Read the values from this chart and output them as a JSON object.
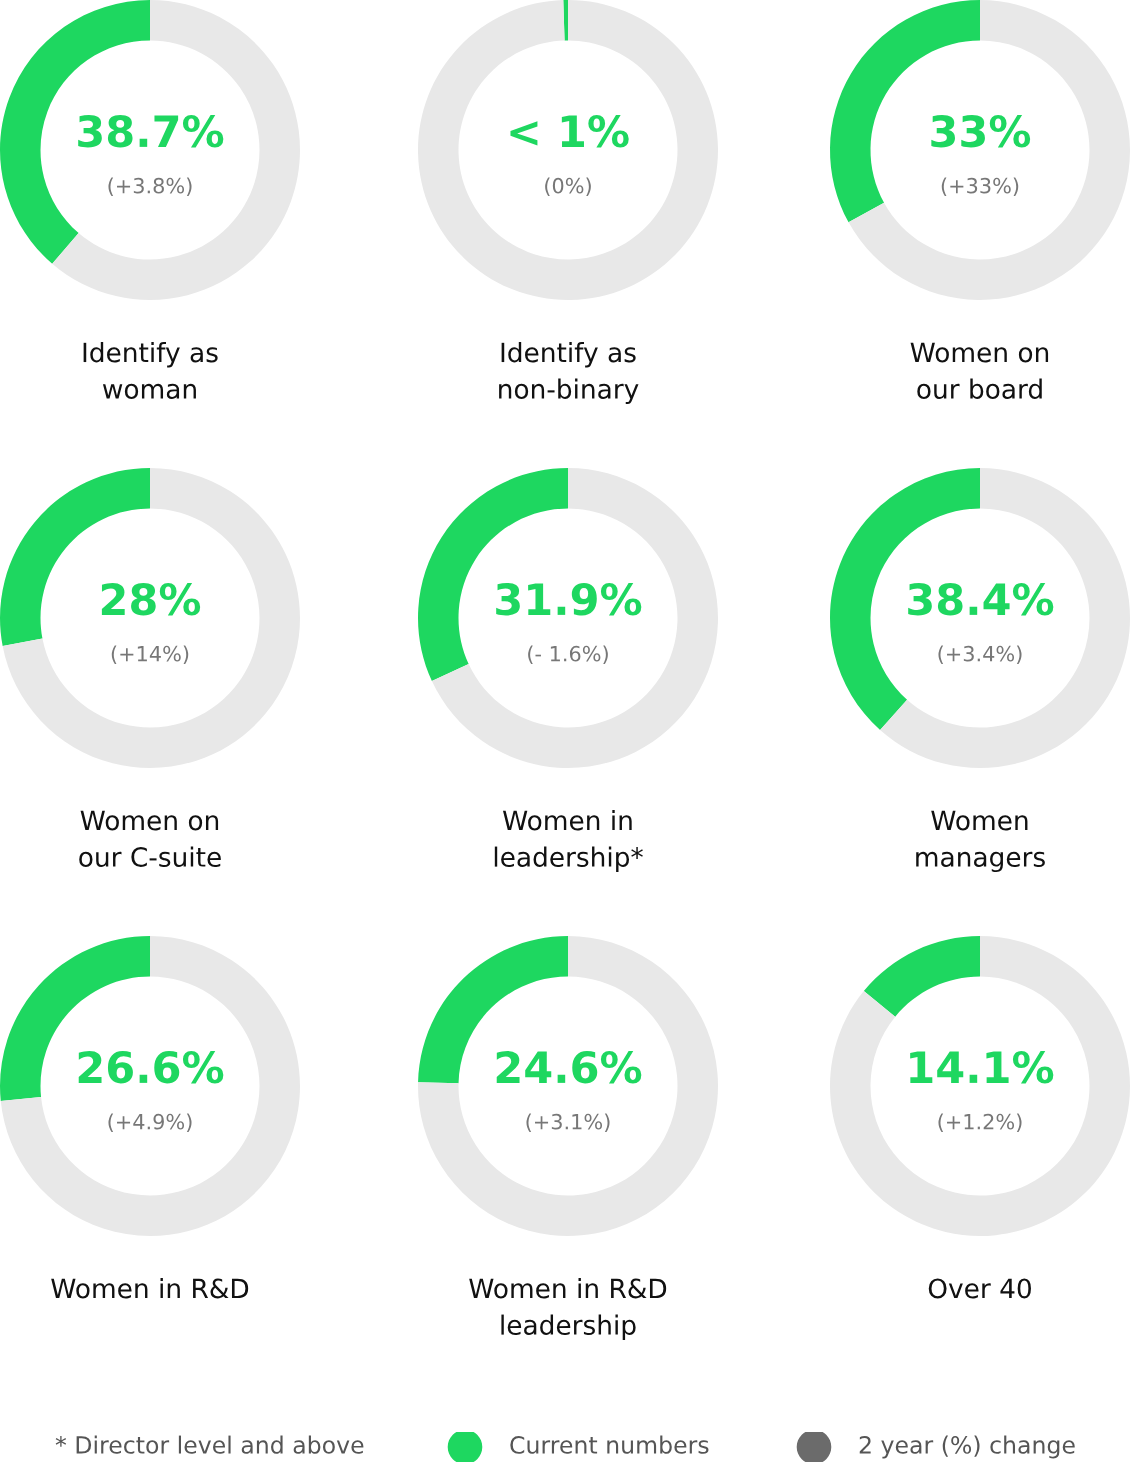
{
  "chart_data": [
    {
      "type": "donut",
      "categories": [
        null,
        null
      ],
      "values": [
        38.7,
        61.3
      ],
      "colors": [
        "#1ed760",
        "#e8e8e8"
      ],
      "value_labels": [
        "38.7%",
        null
      ],
      "annotations": [
        "(+3.8%)"
      ],
      "xlabel": "Identify as\nwoman"
    },
    {
      "type": "donut",
      "categories": [
        null,
        null
      ],
      "values": [
        0.5,
        99.5
      ],
      "colors": [
        "#1ed760",
        "#e8e8e8"
      ],
      "value_labels": [
        "< 1%",
        null
      ],
      "annotations": [
        "(0%)"
      ],
      "xlabel": "Identify as\nnon-binary"
    },
    {
      "type": "donut",
      "categories": [
        null,
        null
      ],
      "values": [
        33,
        67
      ],
      "colors": [
        "#1ed760",
        "#e8e8e8"
      ],
      "value_labels": [
        "33%",
        null
      ],
      "annotations": [
        "(+33%)"
      ],
      "xlabel": "Women on\nour board"
    },
    {
      "type": "donut",
      "categories": [
        null,
        null
      ],
      "values": [
        28,
        72
      ],
      "colors": [
        "#1ed760",
        "#e8e8e8"
      ],
      "value_labels": [
        "28%",
        null
      ],
      "annotations": [
        "(+14%)"
      ],
      "xlabel": "Women on\nour C-suite"
    },
    {
      "type": "donut",
      "categories": [
        null,
        null
      ],
      "values": [
        31.9,
        68.1
      ],
      "colors": [
        "#1ed760",
        "#e8e8e8"
      ],
      "value_labels": [
        "31.9%",
        null
      ],
      "annotations": [
        "(- 1.6%)"
      ],
      "xlabel": "Women in\nleadership*"
    },
    {
      "type": "donut",
      "categories": [
        null,
        null
      ],
      "values": [
        38.4,
        61.6
      ],
      "colors": [
        "#1ed760",
        "#e8e8e8"
      ],
      "value_labels": [
        "38.4%",
        null
      ],
      "annotations": [
        "(+3.4%)"
      ],
      "xlabel": "Women\nmanagers"
    },
    {
      "type": "donut",
      "categories": [
        null,
        null
      ],
      "values": [
        26.6,
        73.4
      ],
      "colors": [
        "#1ed760",
        "#e8e8e8"
      ],
      "value_labels": [
        "26.6%",
        null
      ],
      "annotations": [
        "(+4.9%)"
      ],
      "xlabel": "Women in R&D"
    },
    {
      "type": "donut",
      "categories": [
        null,
        null
      ],
      "values": [
        24.6,
        75.4
      ],
      "colors": [
        "#1ed760",
        "#e8e8e8"
      ],
      "value_labels": [
        "24.6%",
        null
      ],
      "annotations": [
        "(+3.1%)"
      ],
      "xlabel": "Women in R&D\nleadership"
    },
    {
      "type": "donut",
      "categories": [
        null,
        null
      ],
      "values": [
        14.1,
        85.9
      ],
      "colors": [
        "#1ed760",
        "#e8e8e8"
      ],
      "value_labels": [
        "14.1%",
        null
      ],
      "annotations": [
        "(+1.2%)"
      ],
      "xlabel": "Over 40"
    },
    {
      "type": "other",
      "annotations": [
        "* Director level and above",
        "Current numbers",
        "2 year (%) change"
      ],
      "colors": [
        null,
        "#1ed760",
        "#6b6b6b"
      ]
    }
  ]
}
